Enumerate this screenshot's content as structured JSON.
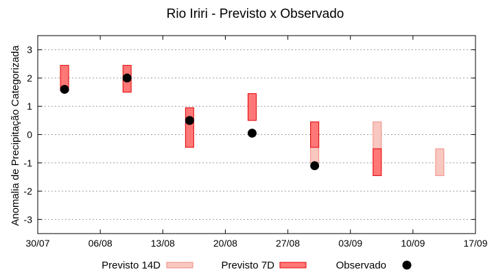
{
  "chart_data": {
    "type": "range-bar-scatter",
    "title": "Rio Iriri - Previsto x Observado",
    "xlabel": "",
    "ylabel": "Anomalia de Precipitação Categorizada",
    "ylim": [
      -3.5,
      3.5
    ],
    "yticks": [
      "-3",
      "-2",
      "-1",
      "0",
      "1",
      "2",
      "3"
    ],
    "ytick_values": [
      -3,
      -2,
      -1,
      0,
      1,
      2,
      3
    ],
    "xlim": [
      "2024-07-30",
      "2024-09-17"
    ],
    "xticks": [
      "30/07",
      "06/08",
      "13/08",
      "20/08",
      "27/08",
      "03/09",
      "10/09",
      "17/09"
    ],
    "xtick_dates": [
      "2024-07-30",
      "2024-08-06",
      "2024-08-13",
      "2024-08-20",
      "2024-08-27",
      "2024-09-03",
      "2024-09-10",
      "2024-09-17"
    ],
    "grid": true,
    "legend_position": "bottom",
    "series": [
      {
        "name": "Previsto 14D",
        "kind": "range",
        "fill": "#f8c8c0",
        "stroke": "#f08a80",
        "points": [
          {
            "x": "2024-08-30",
            "low": -1.0,
            "high": 0.45
          },
          {
            "x": "2024-09-06",
            "low": -1.45,
            "high": 0.45
          },
          {
            "x": "2024-09-13",
            "low": -1.45,
            "high": -0.5
          }
        ]
      },
      {
        "name": "Previsto 7D",
        "kind": "range",
        "fill": "#ff7878",
        "stroke": "#e00000",
        "points": [
          {
            "x": "2024-08-02",
            "low": 1.55,
            "high": 2.45
          },
          {
            "x": "2024-08-09",
            "low": 1.5,
            "high": 2.45
          },
          {
            "x": "2024-08-16",
            "low": -0.45,
            "high": 0.95
          },
          {
            "x": "2024-08-23",
            "low": 0.5,
            "high": 1.45
          },
          {
            "x": "2024-08-30",
            "low": -0.45,
            "high": 0.45
          },
          {
            "x": "2024-09-06",
            "low": -1.45,
            "high": -0.5
          }
        ]
      },
      {
        "name": "Observado",
        "kind": "point",
        "color": "#000000",
        "points": [
          {
            "x": "2024-08-02",
            "y": 1.6
          },
          {
            "x": "2024-08-09",
            "y": 2.0
          },
          {
            "x": "2024-08-16",
            "y": 0.5
          },
          {
            "x": "2024-08-23",
            "y": 0.05
          },
          {
            "x": "2024-08-30",
            "y": -1.1
          }
        ]
      }
    ]
  }
}
